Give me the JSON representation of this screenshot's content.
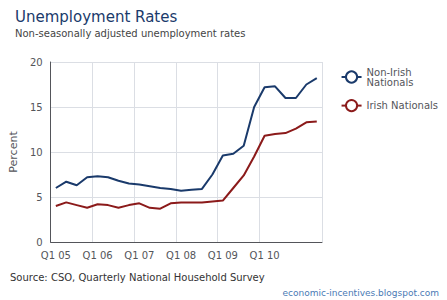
{
  "chart_data": {
    "type": "line",
    "title": "Unemployment Rates",
    "subtitle": "Non-seasonally adjusted unemployment rates",
    "ylabel": "Percent",
    "annotations": [
      "Source: CSO, Quarterly National Household Survey",
      "economic-incentives.blogspot.com"
    ],
    "categories": [
      "Q1 05",
      null,
      null,
      null,
      "Q1 06",
      null,
      null,
      null,
      "Q1 07",
      null,
      null,
      null,
      "Q1 08",
      null,
      null,
      null,
      "Q1 09",
      null,
      null,
      null,
      "Q1 10",
      null,
      null,
      null,
      null,
      null
    ],
    "series": [
      {
        "name": "Non-Irish\nNationals",
        "color": "#1a3a6b",
        "values": [
          6.0,
          6.7,
          6.3,
          7.2,
          7.3,
          7.2,
          6.8,
          6.5,
          6.4,
          6.2,
          6.0,
          5.9,
          5.7,
          5.8,
          5.9,
          7.5,
          9.6,
          9.8,
          10.7,
          15.0,
          17.2,
          17.3,
          16.0,
          16.0,
          17.5,
          18.2
        ]
      },
      {
        "name": "Irish Nationals",
        "color": "#8b1a1a",
        "values": [
          4.0,
          4.4,
          4.1,
          3.8,
          4.2,
          4.1,
          3.8,
          4.1,
          4.3,
          3.8,
          3.7,
          4.3,
          4.4,
          4.4,
          4.4,
          4.5,
          4.6,
          6.0,
          7.4,
          9.5,
          11.8,
          12.0,
          12.1,
          12.6,
          13.3,
          13.4
        ]
      }
    ],
    "ylim": [
      0,
      20
    ],
    "yticks": [
      0,
      5,
      10,
      15,
      20
    ],
    "grid": true,
    "legend": "right"
  }
}
